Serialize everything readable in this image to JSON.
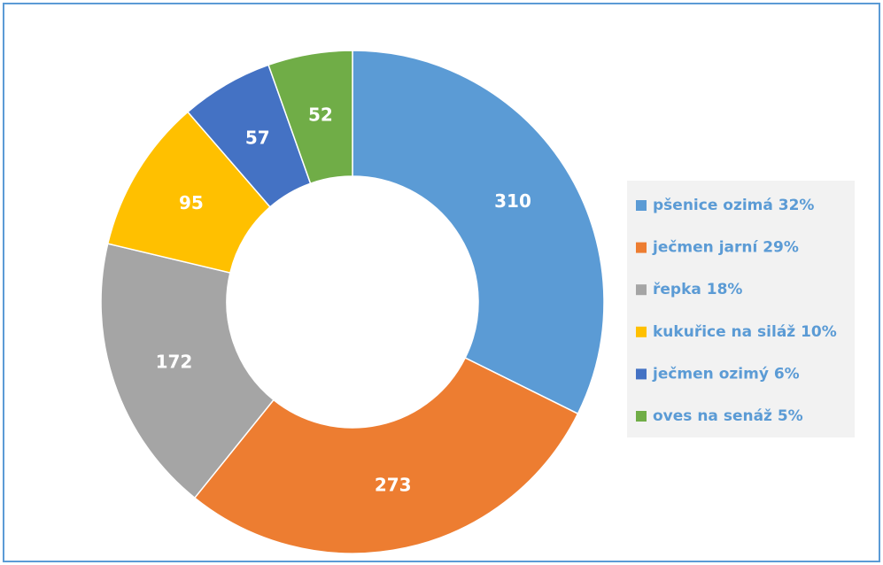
{
  "chart_data": {
    "type": "donut",
    "categories": [
      "pšenice ozimá 32%",
      "ječmen jarní 29%",
      "řepka 18%",
      "kukuřice na siláž 10%",
      "ječmen ozimý 6%",
      "oves na senáž 5%"
    ],
    "values": [
      310,
      273,
      172,
      95,
      57,
      52
    ],
    "colors": [
      "#5b9bd5",
      "#ed7d31",
      "#a5a5a5",
      "#ffc000",
      "#4472c4",
      "#70ad47"
    ],
    "legend": "right"
  }
}
